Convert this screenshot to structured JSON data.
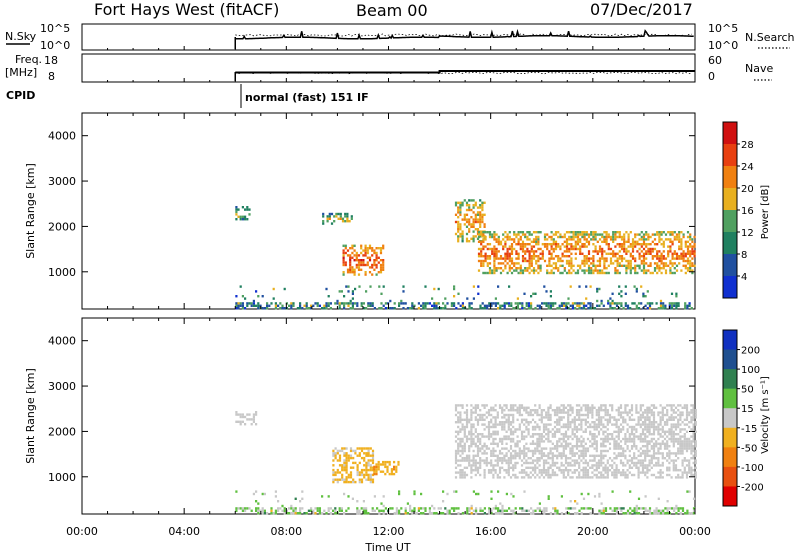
{
  "header": {
    "title": "Fort Hays West (fitACF)",
    "beam": "Beam 00",
    "date": "07/Dec/2017"
  },
  "top_panels": {
    "nsky": {
      "label": "N.Sky",
      "ticks": [
        "10^5",
        "10^0"
      ],
      "right_ticks": [
        "10^5",
        "10^0"
      ],
      "right_label": "N.Search"
    },
    "freq": {
      "label_line1": "Freq.",
      "label_line2": "[MHz]",
      "ticks": [
        "18",
        "8"
      ],
      "right_ticks": [
        "60",
        "0"
      ],
      "right_label": "Nave"
    },
    "cpid": {
      "label": "CPID",
      "mode_text": "normal (fast) 151 IF"
    }
  },
  "colors": {
    "power_scale": [
      "#1030d0",
      "#2050a0",
      "#208060",
      "#50a060",
      "#e8b020",
      "#f08010",
      "#e84010",
      "#d01010"
    ],
    "velocity_scale": [
      "#1030c0",
      "#205090",
      "#308050",
      "#60c040",
      "#c8c8c8",
      "#f0b020",
      "#f08010",
      "#e85010",
      "#e00000"
    ]
  },
  "chart_data": [
    {
      "type": "heatmap",
      "ylabel": "Slant Range [km]",
      "ylim": [
        180,
        4500
      ],
      "yticks": [
        1000,
        2000,
        3000,
        4000
      ],
      "colorbar": {
        "label": "Power [dB]",
        "ticks": [
          "28",
          "24",
          "20",
          "16",
          "12",
          "8",
          "4"
        ],
        "range": [
          0,
          32
        ]
      },
      "echo_regions": [
        {
          "t_start": 6.0,
          "t_end": 6.6,
          "r_min": 2150,
          "r_max": 2450,
          "value": 12
        },
        {
          "t_start": 9.4,
          "t_end": 10.6,
          "r_min": 2050,
          "r_max": 2300,
          "value": 14
        },
        {
          "t_start": 10.2,
          "t_end": 11.8,
          "r_min": 950,
          "r_max": 1600,
          "value": 22
        },
        {
          "t_start": 14.6,
          "t_end": 15.8,
          "r_min": 1700,
          "r_max": 2600,
          "value": 18
        },
        {
          "t_start": 15.5,
          "t_end": 24.0,
          "r_min": 1000,
          "r_max": 1900,
          "value": 20
        },
        {
          "t_start": 6.0,
          "t_end": 24.0,
          "r_min": 180,
          "r_max": 700,
          "value": 10
        }
      ]
    },
    {
      "type": "heatmap",
      "xlabel": "Time UT",
      "ylabel": "Slant Range [km]",
      "ylim": [
        180,
        4500
      ],
      "yticks": [
        1000,
        2000,
        3000,
        4000
      ],
      "xticks": [
        "00:00",
        "04:00",
        "08:00",
        "12:00",
        "16:00",
        "20:00",
        "00:00"
      ],
      "xlim": [
        0,
        24
      ],
      "colorbar": {
        "label": "Velocity [m s⁻¹]",
        "ticks": [
          "200",
          "100",
          "50",
          "15",
          "-15",
          "-50",
          "-100",
          "-200"
        ],
        "range": [
          -250,
          250
        ]
      },
      "echo_regions": [
        {
          "t_start": 6.0,
          "t_end": 6.8,
          "r_min": 2150,
          "r_max": 2450,
          "value": 0
        },
        {
          "t_start": 9.8,
          "t_end": 11.4,
          "r_min": 900,
          "r_max": 1650,
          "value": -40
        },
        {
          "t_start": 11.4,
          "t_end": 12.4,
          "r_min": 1050,
          "r_max": 1350,
          "value": -70
        },
        {
          "t_start": 14.6,
          "t_end": 24.0,
          "r_min": 1000,
          "r_max": 2600,
          "value": 0
        },
        {
          "t_start": 6.0,
          "t_end": 24.0,
          "r_min": 180,
          "r_max": 700,
          "value": 30
        }
      ]
    }
  ]
}
